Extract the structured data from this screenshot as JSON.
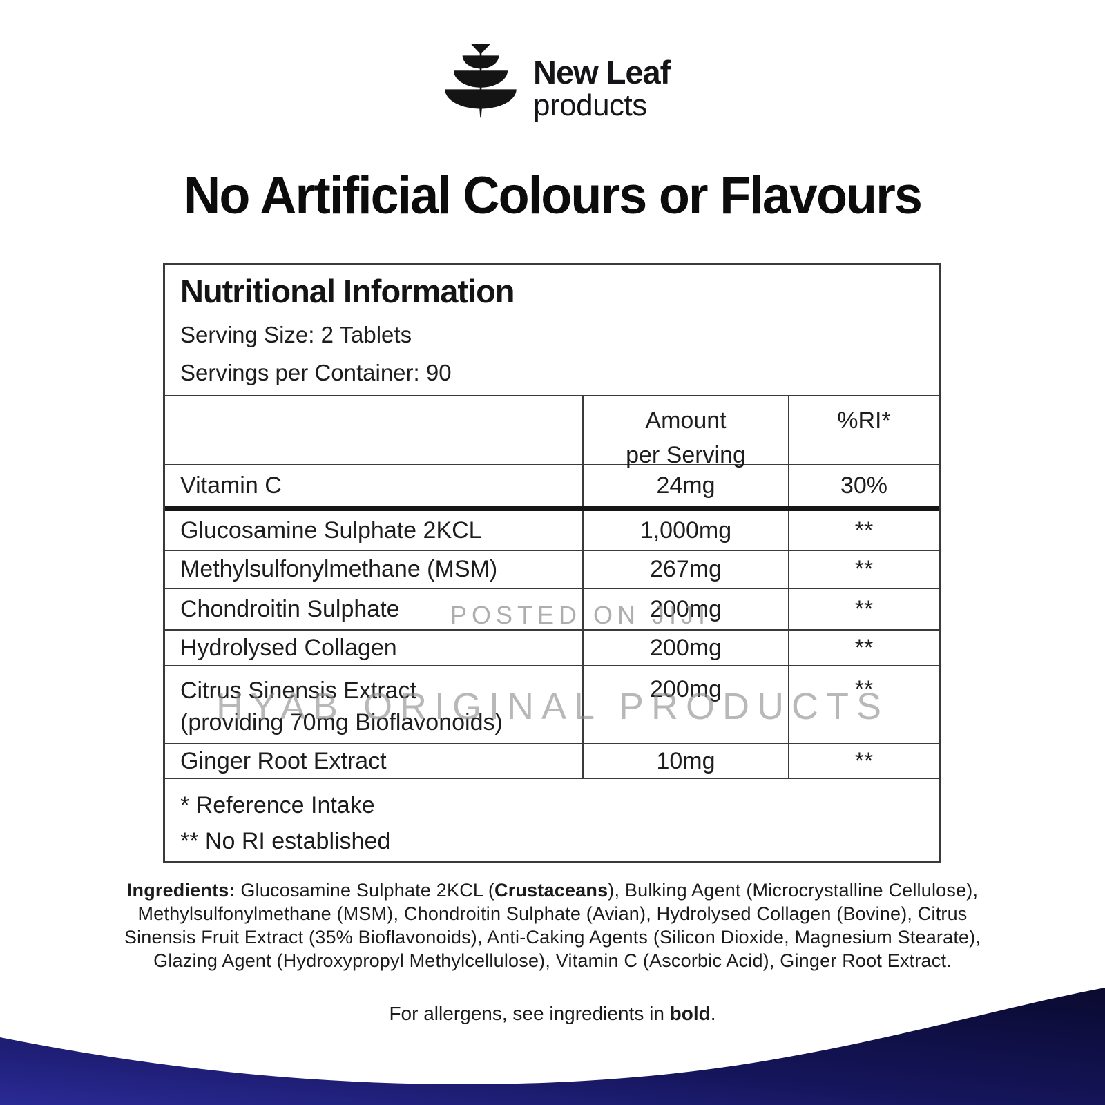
{
  "logo": {
    "name": "New Leaf",
    "sub": "products"
  },
  "heading": "No Artificial Colours or Flavours",
  "watermarks": {
    "small": "POSTED ON JIJI",
    "large": "HYAB ORIGINAL PRODUCTS"
  },
  "nutrition": {
    "title": "Nutritional Information",
    "serving_size": "Serving Size: 2 Tablets",
    "servings_per_container": "Servings per Container: 90",
    "columns": {
      "amount_line1": "Amount",
      "amount_line2": "per Serving",
      "ri": "%RI*"
    },
    "rows": [
      {
        "name": "Vitamin C",
        "amount": "24mg",
        "ri": "30%"
      },
      {
        "name": "Glucosamine Sulphate 2KCL",
        "amount": "1,000mg",
        "ri": "**"
      },
      {
        "name": "Methylsulfonylmethane (MSM)",
        "amount": "267mg",
        "ri": "**"
      },
      {
        "name": "Chondroitin Sulphate",
        "amount": "200mg",
        "ri": "**"
      },
      {
        "name": "Hydrolysed Collagen",
        "amount": "200mg",
        "ri": "**"
      },
      {
        "name": "Citrus Sinensis Extract",
        "name2": "(providing 70mg Bioflavonoids)",
        "amount": "200mg",
        "ri": "**"
      },
      {
        "name": "Ginger Root Extract",
        "amount": "10mg",
        "ri": "**"
      }
    ],
    "footnotes": [
      "* Reference Intake",
      "** No RI established"
    ]
  },
  "ingredients": {
    "lines": [
      [
        {
          "t": "Ingredients:",
          "b": true
        },
        {
          "t": " Glucosamine Sulphate 2KCL (",
          "b": false
        },
        {
          "t": "Crustaceans",
          "b": true
        },
        {
          "t": "), Bulking Agent (Microcrystalline Cellulose),",
          "b": false
        }
      ],
      [
        {
          "t": "Methylsulfonylmethane (MSM), Chondroitin Sulphate (Avian), Hydrolysed Collagen (Bovine), Citrus",
          "b": false
        }
      ],
      [
        {
          "t": "Sinensis Fruit Extract (35% Bioflavonoids), Anti-Caking Agents (Silicon Dioxide, Magnesium Stearate),",
          "b": false
        }
      ],
      [
        {
          "t": "Glazing Agent (Hydroxypropyl Methylcellulose), Vitamin C (Ascorbic Acid), Ginger Root Extract.",
          "b": false
        }
      ]
    ]
  },
  "allergens": {
    "segments": [
      {
        "t": "For allergens, see ingredients in ",
        "b": false
      },
      {
        "t": "bold",
        "b": true
      },
      {
        "t": ".",
        "b": false
      }
    ]
  },
  "colors": {
    "band_dark": "#0a0a30",
    "band_light": "#2a2a96",
    "table_border": "#3a3a3a"
  }
}
